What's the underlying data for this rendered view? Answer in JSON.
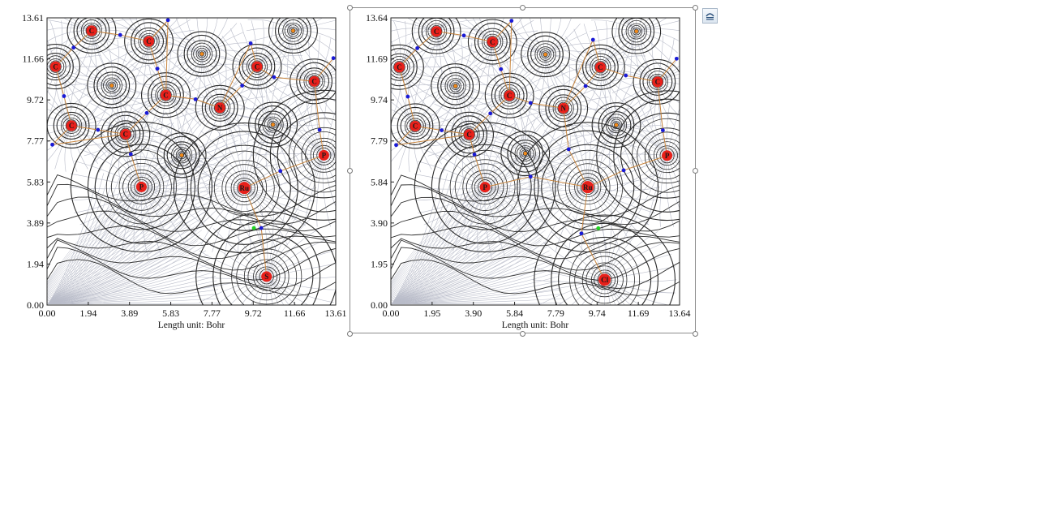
{
  "chart_data": [
    {
      "type": "contour",
      "xlabel": "Length unit: Bohr",
      "ylabel": "",
      "xlim": [
        0,
        13.61
      ],
      "ylim": [
        0,
        13.61
      ],
      "x_ticks": [
        "0.00",
        "1.94",
        "3.89",
        "5.83",
        "7.77",
        "9.72",
        "11.66",
        "13.61"
      ],
      "y_ticks": [
        "0.00",
        "1.94",
        "3.89",
        "5.83",
        "7.77",
        "9.72",
        "11.66",
        "13.61"
      ],
      "atoms": [
        {
          "label": "C",
          "x": 0.4,
          "y": 11.3
        },
        {
          "label": "C",
          "x": 2.1,
          "y": 13.0
        },
        {
          "label": "C",
          "x": 4.8,
          "y": 12.5
        },
        {
          "label": "C",
          "x": 1.15,
          "y": 8.5
        },
        {
          "label": "C",
          "x": 3.7,
          "y": 8.1
        },
        {
          "label": "C",
          "x": 5.6,
          "y": 9.95
        },
        {
          "label": "N",
          "x": 8.15,
          "y": 9.35
        },
        {
          "label": "C",
          "x": 9.9,
          "y": 11.3
        },
        {
          "label": "C",
          "x": 12.6,
          "y": 10.6
        },
        {
          "label": "P",
          "x": 13.05,
          "y": 7.1
        },
        {
          "label": "P",
          "x": 4.45,
          "y": 5.6
        },
        {
          "label": "Ru",
          "x": 9.3,
          "y": 5.55
        },
        {
          "label": "S",
          "x": 10.35,
          "y": 1.35
        }
      ],
      "bond_critical_points": [
        {
          "x": 1.25,
          "y": 12.2
        },
        {
          "x": 3.45,
          "y": 12.8
        },
        {
          "x": 5.7,
          "y": 13.5
        },
        {
          "x": 0.8,
          "y": 9.9
        },
        {
          "x": 0.25,
          "y": 7.6
        },
        {
          "x": 2.4,
          "y": 8.3
        },
        {
          "x": 4.7,
          "y": 9.1
        },
        {
          "x": 3.95,
          "y": 7.15
        },
        {
          "x": 7.0,
          "y": 9.75
        },
        {
          "x": 9.2,
          "y": 10.4
        },
        {
          "x": 10.7,
          "y": 10.8
        },
        {
          "x": 12.85,
          "y": 8.3
        },
        {
          "x": 13.5,
          "y": 11.7
        },
        {
          "x": 11.0,
          "y": 6.35
        },
        {
          "x": 9.6,
          "y": 12.4
        },
        {
          "x": 5.2,
          "y": 11.2
        },
        {
          "x": 10.1,
          "y": 3.65
        }
      ],
      "ring_critical_points": [
        {
          "x": 9.75,
          "y": 3.65
        }
      ],
      "nuclear_attractors": [
        {
          "x": 3.05,
          "y": 10.4
        },
        {
          "x": 7.3,
          "y": 11.9
        },
        {
          "x": 11.6,
          "y": 13.0
        },
        {
          "x": 10.65,
          "y": 8.55
        },
        {
          "x": 6.35,
          "y": 7.1
        }
      ]
    },
    {
      "type": "contour",
      "xlabel": "Length unit: Bohr",
      "ylabel": "",
      "xlim": [
        0,
        13.64
      ],
      "ylim": [
        0,
        13.64
      ],
      "x_ticks": [
        "0.00",
        "1.95",
        "3.90",
        "5.84",
        "7.79",
        "9.74",
        "11.69",
        "13.64"
      ],
      "y_ticks": [
        "0.00",
        "1.95",
        "3.90",
        "5.84",
        "7.79",
        "9.74",
        "11.69",
        "13.64"
      ],
      "atoms": [
        {
          "label": "C",
          "x": 0.4,
          "y": 11.3
        },
        {
          "label": "C",
          "x": 2.15,
          "y": 13.0
        },
        {
          "label": "C",
          "x": 4.8,
          "y": 12.5
        },
        {
          "label": "C",
          "x": 1.15,
          "y": 8.5
        },
        {
          "label": "C",
          "x": 3.7,
          "y": 8.1
        },
        {
          "label": "C",
          "x": 5.6,
          "y": 9.95
        },
        {
          "label": "N",
          "x": 8.15,
          "y": 9.35
        },
        {
          "label": "C",
          "x": 9.9,
          "y": 11.3
        },
        {
          "label": "C",
          "x": 12.6,
          "y": 10.6
        },
        {
          "label": "P",
          "x": 13.05,
          "y": 7.1
        },
        {
          "label": "P",
          "x": 4.45,
          "y": 5.6
        },
        {
          "label": "Ru",
          "x": 9.3,
          "y": 5.6
        },
        {
          "label": "Cl",
          "x": 10.1,
          "y": 1.2
        }
      ],
      "bond_critical_points": [
        {
          "x": 1.25,
          "y": 12.2
        },
        {
          "x": 3.45,
          "y": 12.8
        },
        {
          "x": 5.7,
          "y": 13.5
        },
        {
          "x": 0.8,
          "y": 9.9
        },
        {
          "x": 0.25,
          "y": 7.6
        },
        {
          "x": 2.4,
          "y": 8.3
        },
        {
          "x": 4.7,
          "y": 9.1
        },
        {
          "x": 3.95,
          "y": 7.15
        },
        {
          "x": 6.6,
          "y": 9.6
        },
        {
          "x": 9.2,
          "y": 10.4
        },
        {
          "x": 11.1,
          "y": 10.9
        },
        {
          "x": 12.85,
          "y": 8.3
        },
        {
          "x": 13.5,
          "y": 11.7
        },
        {
          "x": 11.0,
          "y": 6.4
        },
        {
          "x": 8.4,
          "y": 7.4
        },
        {
          "x": 6.6,
          "y": 6.1
        },
        {
          "x": 9.55,
          "y": 12.6
        },
        {
          "x": 5.2,
          "y": 11.2
        },
        {
          "x": 9.0,
          "y": 3.4
        }
      ],
      "ring_critical_points": [
        {
          "x": 9.8,
          "y": 3.65
        }
      ],
      "nuclear_attractors": [
        {
          "x": 3.05,
          "y": 10.4
        },
        {
          "x": 7.3,
          "y": 11.9
        },
        {
          "x": 11.6,
          "y": 13.0
        },
        {
          "x": 10.65,
          "y": 8.55
        },
        {
          "x": 6.35,
          "y": 7.2
        }
      ]
    }
  ],
  "colors": {
    "contour_dark": "#2b2b2b",
    "gradient_lines": "#b9bcc9",
    "atom_fill": "#e8201a",
    "bond_path": "#c9863f",
    "bond_cp": "#1a1ad6",
    "ring_cp": "#22d422",
    "attractor": "#f28a1a",
    "frame_border": "#8c8c8c"
  },
  "toolbar": {
    "layout_options_icon": "layout-options-icon"
  }
}
